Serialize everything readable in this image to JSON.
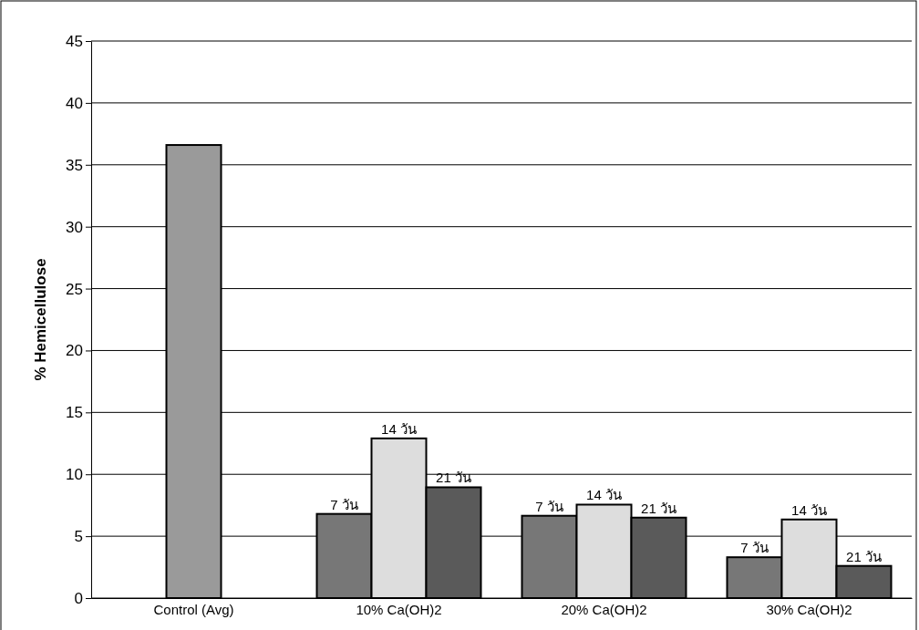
{
  "chart_data": {
    "type": "bar",
    "ylabel": "% Hemicellulose",
    "categories": [
      "Control (Avg)",
      "10% Ca(OH)2",
      "20% Ca(OH)2",
      "30% Ca(OH)2"
    ],
    "series": [
      {
        "color": "#9a9a9a",
        "values": [
          36.6,
          null,
          null,
          null
        ]
      },
      {
        "name": "7 วัน",
        "color": "#777777",
        "values": [
          null,
          6.8,
          6.65,
          3.3
        ]
      },
      {
        "name": "14 วัน",
        "color": "#dddddd",
        "values": [
          null,
          12.9,
          7.55,
          6.35
        ]
      },
      {
        "name": "21 วัน",
        "color": "#5a5a5a",
        "values": [
          null,
          8.95,
          6.5,
          2.6
        ]
      }
    ],
    "ylim": [
      0,
      45
    ],
    "yticks": [
      0,
      5,
      10,
      15,
      20,
      25,
      30,
      35,
      40,
      45
    ],
    "grid": "y",
    "legend": false
  }
}
